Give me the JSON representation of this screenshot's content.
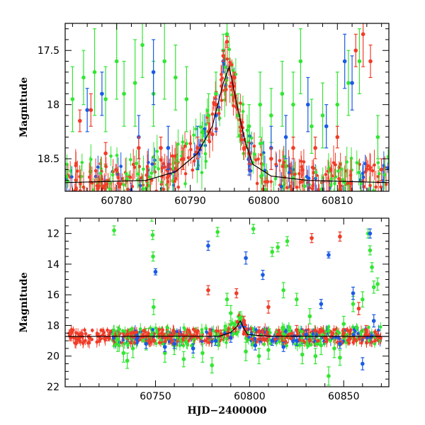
{
  "colors": {
    "green": "#33e633",
    "blue": "#1a5ae6",
    "red": "#f03c28",
    "model": "#000000"
  },
  "chart_data": [
    {
      "type": "scatter",
      "title": "",
      "xlabel": "",
      "ylabel": "Magnitude",
      "xlim": [
        60773,
        60817
      ],
      "ylim": [
        18.8,
        17.25
      ],
      "y_inverted": true,
      "x_ticks": [
        60780,
        60790,
        60800,
        60810
      ],
      "y_ticks": [
        17.5,
        18,
        18.5
      ],
      "grid": false,
      "series": [
        {
          "color": "green",
          "points": [
            [
              60774,
              17.95,
              0.3
            ],
            [
              60775.5,
              17.75,
              0.25
            ],
            [
              60777,
              17.7,
              0.4
            ],
            [
              60778.5,
              17.95,
              0.3
            ],
            [
              60780,
              17.6,
              0.35
            ],
            [
              60781,
              17.9,
              0.3
            ],
            [
              60782.5,
              17.8,
              0.4
            ],
            [
              60783.5,
              17.45,
              0.3
            ],
            [
              60785,
              17.9,
              0.3
            ],
            [
              60786.5,
              17.6,
              0.35
            ],
            [
              60788,
              17.75,
              0.3
            ],
            [
              60789.5,
              17.95,
              0.3
            ],
            [
              60792.5,
              18.1,
              0.2
            ],
            [
              60793.5,
              17.9,
              0.2
            ],
            [
              60794.5,
              17.5,
              0.15
            ],
            [
              60795,
              17.35,
              0.1
            ],
            [
              60796.5,
              18.1,
              0.2
            ],
            [
              60798,
              18.2,
              0.2
            ],
            [
              60799.5,
              18.0,
              0.3
            ],
            [
              60801,
              18.1,
              0.25
            ],
            [
              60802.5,
              17.9,
              0.3
            ],
            [
              60804,
              18.0,
              0.3
            ],
            [
              60805,
              17.6,
              0.3
            ],
            [
              60806.5,
              18.2,
              0.25
            ],
            [
              60808,
              18.1,
              0.3
            ],
            [
              60810,
              18.0,
              0.3
            ],
            [
              60811.5,
              17.8,
              0.3
            ],
            [
              60813,
              17.6,
              0.3
            ],
            [
              60815.5,
              18.3,
              0.2
            ]
          ]
        },
        {
          "color": "blue",
          "points": [
            [
              60776,
              18.05,
              0.2
            ],
            [
              60778,
              17.9,
              0.2
            ],
            [
              60783,
              18.3,
              0.2
            ],
            [
              60785,
              17.7,
              0.3
            ],
            [
              60787,
              18.4,
              0.2
            ],
            [
              60791,
              18.4,
              0.2
            ],
            [
              60793.5,
              18.1,
              0.15
            ],
            [
              60794.5,
              17.6,
              0.1
            ],
            [
              60798,
              18.5,
              0.15
            ],
            [
              60801,
              18.4,
              0.2
            ],
            [
              60803,
              18.3,
              0.2
            ],
            [
              60806,
              18.0,
              0.25
            ],
            [
              60808.5,
              18.2,
              0.2
            ],
            [
              60811,
              17.6,
              0.25
            ],
            [
              60812,
              17.8,
              0.25
            ]
          ]
        },
        {
          "color": "red",
          "points": [
            [
              60775,
              18.15,
              0.1
            ],
            [
              60776.5,
              18.05,
              0.15
            ],
            [
              60778.5,
              18.45,
              0.1
            ],
            [
              60783,
              18.4,
              0.1
            ],
            [
              60786,
              18.4,
              0.1
            ],
            [
              60789,
              18.5,
              0.1
            ],
            [
              60791,
              18.4,
              0.1
            ],
            [
              60792.5,
              18.25,
              0.08
            ],
            [
              60793.5,
              18.0,
              0.08
            ],
            [
              60794.5,
              17.55,
              0.05
            ],
            [
              60795,
              17.42,
              0.05
            ],
            [
              60796,
              17.75,
              0.05
            ],
            [
              60798,
              18.45,
              0.1
            ],
            [
              60801,
              18.5,
              0.1
            ],
            [
              60804,
              18.4,
              0.1
            ],
            [
              60807,
              18.4,
              0.1
            ],
            [
              60810,
              18.3,
              0.1
            ],
            [
              60812.5,
              17.5,
              0.15
            ],
            [
              60813.5,
              17.35,
              0.3
            ],
            [
              60814.5,
              17.6,
              0.15
            ],
            [
              60816,
              18.6,
              0.1
            ]
          ]
        }
      ],
      "model": [
        [
          60773,
          18.72
        ],
        [
          60784,
          18.7
        ],
        [
          60788,
          18.62
        ],
        [
          60791,
          18.45
        ],
        [
          60793,
          18.2
        ],
        [
          60794.5,
          17.8
        ],
        [
          60795.3,
          17.65
        ],
        [
          60796.5,
          18.05
        ],
        [
          60797.5,
          18.35
        ],
        [
          60798.5,
          18.55
        ],
        [
          60801,
          18.66
        ],
        [
          60806,
          18.7
        ],
        [
          60817,
          18.72
        ]
      ]
    },
    {
      "type": "scatter",
      "title": "",
      "xlabel": "HJD−2400000",
      "ylabel": "Magnitude",
      "xlim": [
        60702,
        60874
      ],
      "ylim": [
        22,
        11
      ],
      "y_inverted": true,
      "x_ticks": [
        60750,
        60800,
        60850
      ],
      "y_ticks": [
        12,
        14,
        16,
        18,
        20,
        22
      ],
      "grid": false,
      "series": [
        {
          "color": "green",
          "points": [
            [
              60728,
              11.8,
              0.3
            ],
            [
              60730,
              18.9,
              0.8
            ],
            [
              60733,
              19.8,
              0.6
            ],
            [
              60735,
              20.3,
              0.5
            ],
            [
              60738,
              19.5,
              0.6
            ],
            [
              60745,
              18.9,
              0.7
            ],
            [
              60748,
              10.9,
              0.3
            ],
            [
              60748.5,
              12.1,
              0.3
            ],
            [
              60748.7,
              13.5,
              0.3
            ],
            [
              60749,
              16.8,
              0.5
            ],
            [
              60755,
              19.8,
              0.6
            ],
            [
              60760,
              19.3,
              0.6
            ],
            [
              60765,
              20.2,
              0.5
            ],
            [
              60770,
              19.5,
              0.6
            ],
            [
              60775,
              19.8,
              0.6
            ],
            [
              60780,
              20.6,
              0.5
            ],
            [
              60783,
              11.9,
              0.3
            ],
            [
              60788,
              16.3,
              0.4
            ],
            [
              60790,
              17.2,
              0.5
            ],
            [
              60795,
              17.5,
              0.4
            ],
            [
              60798,
              19.7,
              0.6
            ],
            [
              60802,
              11.7,
              0.3
            ],
            [
              60805,
              20.0,
              0.5
            ],
            [
              60810,
              19.6,
              0.6
            ],
            [
              60812,
              13.2,
              0.3
            ],
            [
              60815,
              12.9,
              0.3
            ],
            [
              60818,
              15.7,
              0.5
            ],
            [
              60820,
              12.5,
              0.3
            ],
            [
              60825,
              16.3,
              0.4
            ],
            [
              60828,
              19.9,
              0.6
            ],
            [
              60832,
              17.4,
              0.5
            ],
            [
              60835,
              20.0,
              0.5
            ],
            [
              60838,
              19.3,
              0.6
            ],
            [
              60842,
              21.3,
              0.6
            ],
            [
              60845,
              19.5,
              0.6
            ],
            [
              60848,
              20.1,
              0.5
            ],
            [
              60850,
              17.9,
              0.5
            ],
            [
              60855,
              16.6,
              0.5
            ],
            [
              60860,
              16.3,
              0.5
            ],
            [
              60863,
              12.0,
              0.3
            ],
            [
              60864,
              13.1,
              0.3
            ],
            [
              60865,
              14.2,
              0.3
            ],
            [
              60866,
              15.5,
              0.4
            ],
            [
              60868,
              15.3,
              0.4
            ]
          ]
        },
        {
          "color": "blue",
          "points": [
            [
              60740,
              18.9,
              0.3
            ],
            [
              60745,
              19.2,
              0.3
            ],
            [
              60750,
              14.5,
              0.2
            ],
            [
              60755,
              19.4,
              0.3
            ],
            [
              60760,
              19.2,
              0.3
            ],
            [
              60770,
              19.5,
              0.3
            ],
            [
              60778,
              12.8,
              0.3
            ],
            [
              60782,
              19.0,
              0.3
            ],
            [
              60790,
              18.8,
              0.3
            ],
            [
              60798,
              13.6,
              0.4
            ],
            [
              60803,
              19.3,
              0.3
            ],
            [
              60807,
              14.7,
              0.3
            ],
            [
              60812,
              19.0,
              0.3
            ],
            [
              60818,
              19.4,
              0.3
            ],
            [
              60825,
              19.0,
              0.3
            ],
            [
              60830,
              18.6,
              0.3
            ],
            [
              60838,
              16.6,
              0.3
            ],
            [
              60842,
              13.4,
              0.2
            ],
            [
              60848,
              19.2,
              0.3
            ],
            [
              60855,
              15.9,
              0.4
            ],
            [
              60860,
              20.5,
              0.4
            ],
            [
              60864,
              12.0,
              0.3
            ],
            [
              60866,
              17.7,
              0.4
            ]
          ]
        },
        {
          "color": "red",
          "points": [
            [
              60705,
              18.8,
              0.2
            ],
            [
              60710,
              18.75,
              0.2
            ],
            [
              60715,
              18.8,
              0.2
            ],
            [
              60720,
              18.7,
              0.2
            ],
            [
              60725,
              18.8,
              0.2
            ],
            [
              60735,
              18.6,
              0.3
            ],
            [
              60745,
              18.7,
              0.3
            ],
            [
              60755,
              18.8,
              0.3
            ],
            [
              60765,
              18.7,
              0.3
            ],
            [
              60778,
              15.7,
              0.3
            ],
            [
              60785,
              18.6,
              0.3
            ],
            [
              60793,
              15.9,
              0.3
            ],
            [
              60797,
              17.7,
              0.3
            ],
            [
              60805,
              18.4,
              0.3
            ],
            [
              60810,
              16.8,
              0.4
            ],
            [
              60815,
              18.6,
              0.3
            ],
            [
              60825,
              18.3,
              0.3
            ],
            [
              60833,
              12.3,
              0.3
            ],
            [
              60840,
              18.8,
              0.3
            ],
            [
              60848,
              12.2,
              0.3
            ],
            [
              60850,
              18.5,
              0.3
            ],
            [
              60858,
              16.9,
              0.4
            ],
            [
              60862,
              18.3,
              0.3
            ],
            [
              60868,
              18.7,
              0.3
            ]
          ]
        }
      ],
      "model": [
        [
          60702,
          18.72
        ],
        [
          60784,
          18.7
        ],
        [
          60790,
          18.45
        ],
        [
          60793,
          18.1
        ],
        [
          60795,
          17.7
        ],
        [
          60797,
          18.2
        ],
        [
          60799,
          18.6
        ],
        [
          60810,
          18.7
        ],
        [
          60874,
          18.72
        ]
      ]
    }
  ]
}
